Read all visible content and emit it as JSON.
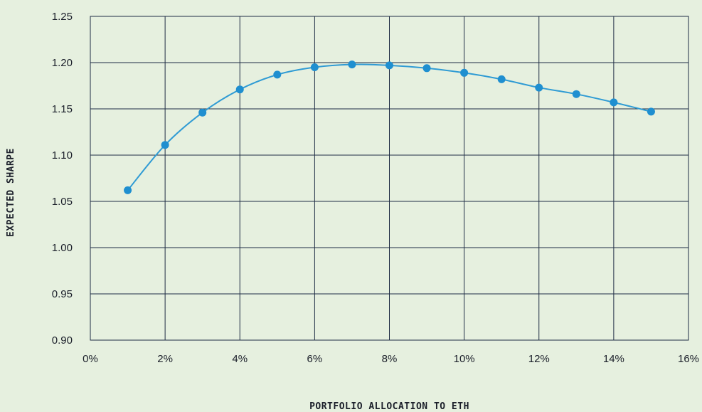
{
  "chart_data": {
    "type": "line",
    "xlabel": "PORTFOLIO ALLOCATION TO ETH",
    "ylabel": "EXPECTED SHARPE",
    "xlim": [
      0,
      16
    ],
    "ylim": [
      0.9,
      1.25
    ],
    "x_ticks": [
      "0%",
      "2%",
      "4%",
      "6%",
      "8%",
      "10%",
      "12%",
      "14%",
      "16%"
    ],
    "y_ticks": [
      "0.90",
      "0.95",
      "1.00",
      "1.05",
      "1.10",
      "1.15",
      "1.20",
      "1.25"
    ],
    "grid": true,
    "series": [
      {
        "x": [
          1,
          2,
          3,
          4,
          5,
          6,
          7,
          8,
          9,
          10,
          11,
          12,
          13,
          14,
          15
        ],
        "y": [
          1.062,
          1.111,
          1.146,
          1.171,
          1.187,
          1.195,
          1.198,
          1.197,
          1.194,
          1.189,
          1.182,
          1.173,
          1.166,
          1.157,
          1.147
        ]
      }
    ],
    "colors": {
      "background": "#e6f0df",
      "plot_background": "#e6f0df",
      "grid": "#1f2d44",
      "line": "#2f9bd4",
      "marker": "#1f8fd0",
      "text": "#1b1f2a"
    }
  }
}
